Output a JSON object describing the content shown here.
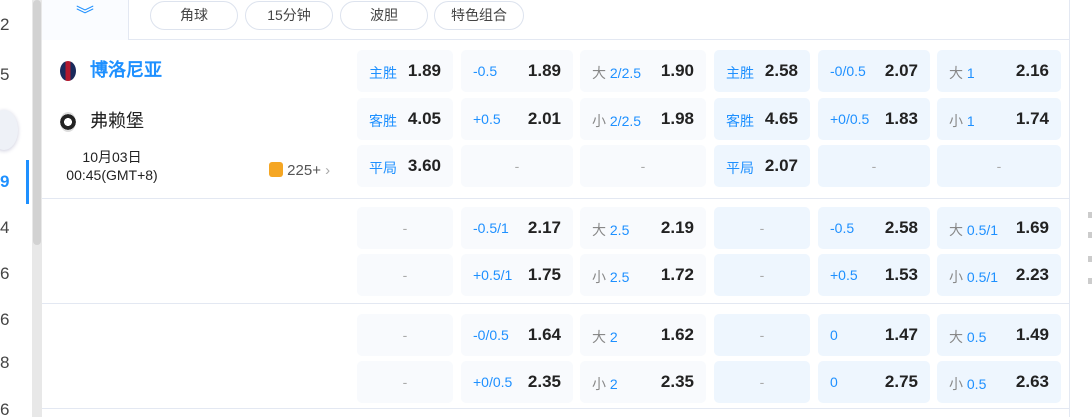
{
  "sidebar_numbers": [
    "2",
    "5",
    "9",
    "4",
    "6",
    "6",
    "8",
    "6"
  ],
  "filters": [
    "角球",
    "15分钟",
    "波胆",
    "特色组合"
  ],
  "match": {
    "home": "博洛尼亚",
    "away": "弗赖堡",
    "date": "10月03日",
    "time": "00:45(GMT+8)",
    "more_count": "225+"
  },
  "groups": [
    {
      "rows": [
        [
          {
            "l": "主胜",
            "v": "1.89"
          },
          {
            "l": "-0.5",
            "v": "1.89"
          },
          {
            "p": "大",
            "l": "2/2.5",
            "v": "1.90"
          },
          {
            "l": "主胜",
            "v": "2.58"
          },
          {
            "l": "-0/0.5",
            "v": "2.07"
          },
          {
            "p": "大",
            "l": "1",
            "v": "2.16"
          }
        ],
        [
          {
            "l": "客胜",
            "v": "4.05"
          },
          {
            "l": "+0.5",
            "v": "2.01"
          },
          {
            "p": "小",
            "l": "2/2.5",
            "v": "1.98"
          },
          {
            "l": "客胜",
            "v": "4.65"
          },
          {
            "l": "+0/0.5",
            "v": "1.83"
          },
          {
            "p": "小",
            "l": "1",
            "v": "1.74"
          }
        ],
        [
          {
            "l": "平局",
            "v": "3.60"
          },
          {
            "d": "-"
          },
          {
            "d": "-"
          },
          {
            "l": "平局",
            "v": "2.07"
          },
          {
            "d": "-"
          },
          {
            "d": "-"
          }
        ]
      ]
    },
    {
      "rows": [
        [
          {
            "d": "-"
          },
          {
            "l": "-0.5/1",
            "v": "2.17"
          },
          {
            "p": "大",
            "l": "2.5",
            "v": "2.19"
          },
          {
            "d": "-"
          },
          {
            "l": "-0.5",
            "v": "2.58"
          },
          {
            "p": "大",
            "l": "0.5/1",
            "v": "1.69"
          }
        ],
        [
          {
            "d": "-"
          },
          {
            "l": "+0.5/1",
            "v": "1.75"
          },
          {
            "p": "小",
            "l": "2.5",
            "v": "1.72"
          },
          {
            "d": "-"
          },
          {
            "l": "+0.5",
            "v": "1.53"
          },
          {
            "p": "小",
            "l": "0.5/1",
            "v": "2.23"
          }
        ]
      ]
    },
    {
      "rows": [
        [
          {
            "d": "-"
          },
          {
            "l": "-0/0.5",
            "v": "1.64"
          },
          {
            "p": "大",
            "l": "2",
            "v": "1.62"
          },
          {
            "d": "-"
          },
          {
            "l": "0",
            "v": "1.47"
          },
          {
            "p": "大",
            "l": "0.5",
            "v": "1.49"
          }
        ],
        [
          {
            "d": "-"
          },
          {
            "l": "+0/0.5",
            "v": "2.35"
          },
          {
            "p": "小",
            "l": "2",
            "v": "2.35"
          },
          {
            "d": "-"
          },
          {
            "l": "0",
            "v": "2.75"
          },
          {
            "p": "小",
            "l": "0.5",
            "v": "2.63"
          }
        ]
      ]
    }
  ],
  "colors": {
    "accent": "#1e90ff",
    "cell_bg": "#f8fafd",
    "cell_bg_blue": "#eef6fe",
    "icon_orange": "#f5a623"
  }
}
